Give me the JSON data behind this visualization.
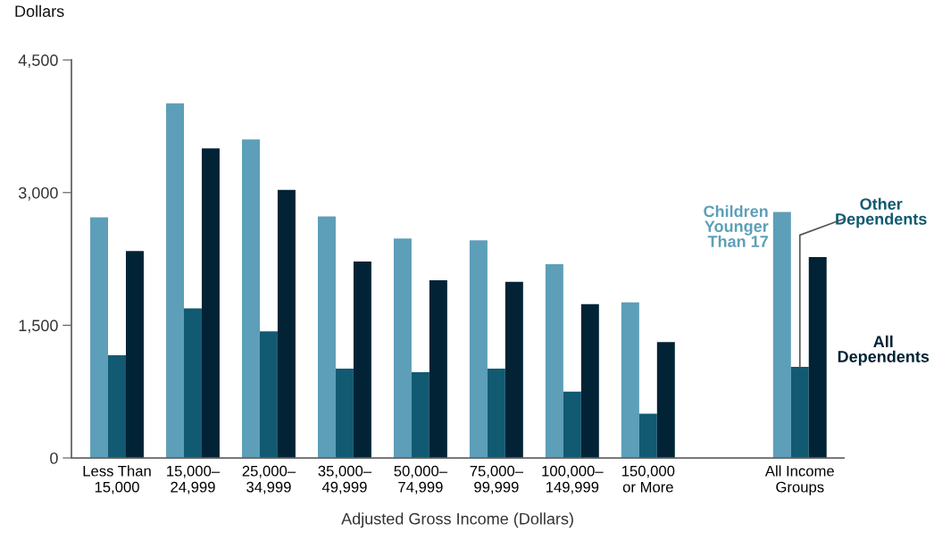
{
  "chart_data": {
    "type": "bar",
    "ylabel": "Dollars",
    "xlabel": "Adjusted Gross Income (Dollars)",
    "categories": [
      "Less Than\n15,000",
      "15,000–\n24,999",
      "25,000–\n34,999",
      "35,000–\n49,999",
      "50,000–\n74,999",
      "75,000–\n99,999",
      "100,000–\n149,999",
      "150,000\nor More",
      null,
      "All Income\nGroups"
    ],
    "series": [
      {
        "name": "Children\nYounger\nThan 17",
        "color": "#5d9eb8",
        "values": [
          2720,
          4010,
          3600,
          2730,
          2480,
          2460,
          2190,
          1760,
          null,
          2780
        ]
      },
      {
        "name": "Other\nDependents",
        "color": "#115a72",
        "values": [
          1160,
          1690,
          1430,
          1010,
          970,
          1010,
          750,
          500,
          null,
          1030
        ]
      },
      {
        "name": "All\nDependents",
        "color": "#022335",
        "values": [
          2340,
          3500,
          3030,
          2220,
          2010,
          1990,
          1740,
          1310,
          null,
          2270
        ]
      }
    ],
    "ylim": [
      0,
      4500
    ],
    "yticks": [
      {
        "value": 0,
        "label": "0"
      },
      {
        "value": 1500,
        "label": "1,500"
      },
      {
        "value": 3000,
        "label": "3,000"
      },
      {
        "value": 4500,
        "label": "4,500"
      }
    ],
    "grid": false
  }
}
